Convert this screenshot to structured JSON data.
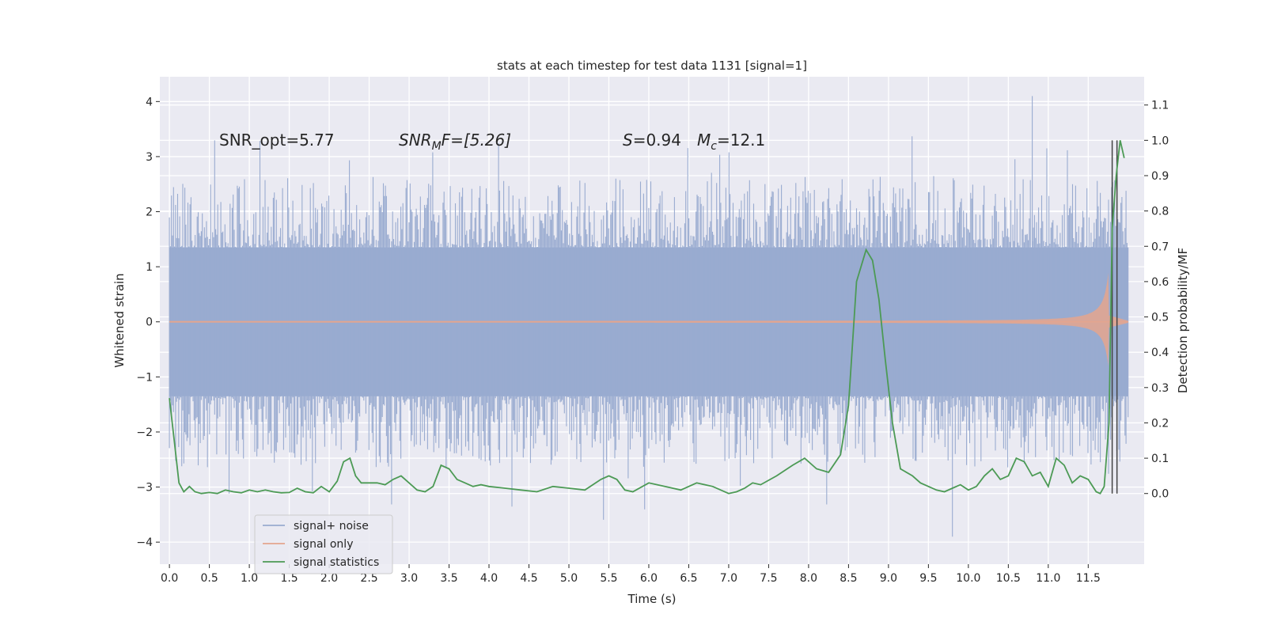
{
  "chart_data": {
    "type": "line",
    "title": "stats at each timestep for test data 1131 [signal=1]",
    "xlabel": "Time (s)",
    "ylabel": "Whitened strain",
    "y2label": "Detection probability/MF",
    "xlim": [
      -0.12,
      12.2
    ],
    "ylim": [
      -4.4,
      4.45
    ],
    "y2lim": [
      -0.2,
      1.18
    ],
    "x_ticks": [
      0.0,
      0.5,
      1.0,
      1.5,
      2.0,
      2.5,
      3.0,
      3.5,
      4.0,
      4.5,
      5.0,
      5.5,
      6.0,
      6.5,
      7.0,
      7.5,
      8.0,
      8.5,
      9.0,
      9.5,
      10.0,
      10.5,
      11.0,
      11.5
    ],
    "x_tick_labels": [
      "0.0",
      "0.5",
      "1.0",
      "1.5",
      "2.0",
      "2.5",
      "3.0",
      "3.5",
      "4.0",
      "4.5",
      "5.0",
      "5.5",
      "6.0",
      "6.5",
      "7.0",
      "7.5",
      "8.0",
      "8.5",
      "9.0",
      "9.5",
      "10.0",
      "10.5",
      "11.0",
      "11.5"
    ],
    "y_ticks": [
      4,
      3,
      2,
      1,
      0,
      -1,
      -2,
      -3,
      -4
    ],
    "y_tick_labels": [
      "4",
      "3",
      "2",
      "1",
      "0",
      "−1",
      "−2",
      "−3",
      "−4"
    ],
    "y2_ticks": [
      1.1,
      1.0,
      0.9,
      0.8,
      0.7,
      0.6,
      0.5,
      0.4,
      0.3,
      0.2,
      0.1,
      0.0
    ],
    "y2_tick_labels": [
      "1.1",
      "1.0",
      "0.9",
      "0.8",
      "0.7",
      "0.6",
      "0.5",
      "0.4",
      "0.3",
      "0.2",
      "0.1",
      "0.0"
    ],
    "grid": true,
    "legend_position": "lower-left",
    "annotations": {
      "snr_opt": "SNR_opt=5.77",
      "snr_mf_var": "SNR",
      "snr_mf_sub": "M",
      "snr_mf_rest": "F=[5.26]",
      "s_var": "S",
      "s_rest": "=0.94",
      "mc_var": "M",
      "mc_sub": "c",
      "mc_rest": "=12.1"
    },
    "vlines": [
      11.8,
      11.86
    ],
    "series": [
      {
        "name": "signal+ noise",
        "color": "#99abd0",
        "axis": "left",
        "render": "noise",
        "x_range": [
          0.0,
          12.0
        ],
        "band": [
          -1.35,
          1.35
        ],
        "extremes": [
          -3.9,
          4.1
        ]
      },
      {
        "name": "signal only",
        "color": "#e4a58e",
        "axis": "left",
        "render": "chirp",
        "x_range": [
          0.0,
          12.0
        ],
        "peak_time": 11.75,
        "peak_amplitude": 0.9
      },
      {
        "name": "signal statistics",
        "color": "#4c9a55",
        "axis": "right",
        "render": "line",
        "x": [
          0.0,
          0.06,
          0.12,
          0.18,
          0.25,
          0.32,
          0.4,
          0.5,
          0.6,
          0.7,
          0.8,
          0.9,
          1.0,
          1.1,
          1.2,
          1.3,
          1.4,
          1.5,
          1.6,
          1.7,
          1.8,
          1.9,
          2.0,
          2.1,
          2.18,
          2.26,
          2.33,
          2.4,
          2.5,
          2.6,
          2.7,
          2.8,
          2.9,
          3.0,
          3.1,
          3.2,
          3.3,
          3.4,
          3.5,
          3.6,
          3.7,
          3.8,
          3.9,
          4.0,
          4.2,
          4.4,
          4.6,
          4.8,
          5.0,
          5.2,
          5.4,
          5.5,
          5.6,
          5.7,
          5.8,
          6.0,
          6.2,
          6.4,
          6.6,
          6.8,
          7.0,
          7.1,
          7.2,
          7.3,
          7.4,
          7.6,
          7.8,
          7.95,
          8.1,
          8.25,
          8.4,
          8.5,
          8.6,
          8.72,
          8.8,
          8.88,
          8.96,
          9.05,
          9.15,
          9.3,
          9.4,
          9.5,
          9.6,
          9.7,
          9.8,
          9.9,
          10.0,
          10.1,
          10.2,
          10.3,
          10.4,
          10.5,
          10.6,
          10.7,
          10.8,
          10.9,
          11.0,
          11.1,
          11.2,
          11.3,
          11.4,
          11.5,
          11.6,
          11.65,
          11.7,
          11.76,
          11.8,
          11.85,
          11.9,
          11.95
        ],
        "y": [
          0.27,
          0.15,
          0.03,
          0.005,
          0.02,
          0.005,
          0.0,
          0.003,
          0.0,
          0.01,
          0.005,
          0.002,
          0.01,
          0.005,
          0.01,
          0.005,
          0.002,
          0.003,
          0.015,
          0.005,
          0.002,
          0.02,
          0.005,
          0.035,
          0.09,
          0.1,
          0.05,
          0.03,
          0.03,
          0.03,
          0.025,
          0.04,
          0.05,
          0.03,
          0.01,
          0.005,
          0.02,
          0.08,
          0.07,
          0.04,
          0.03,
          0.02,
          0.025,
          0.02,
          0.015,
          0.01,
          0.005,
          0.02,
          0.015,
          0.01,
          0.04,
          0.05,
          0.04,
          0.01,
          0.005,
          0.03,
          0.02,
          0.01,
          0.03,
          0.02,
          0.0,
          0.005,
          0.015,
          0.03,
          0.025,
          0.05,
          0.08,
          0.1,
          0.07,
          0.06,
          0.11,
          0.25,
          0.6,
          0.69,
          0.66,
          0.55,
          0.38,
          0.2,
          0.07,
          0.05,
          0.03,
          0.02,
          0.01,
          0.005,
          0.015,
          0.025,
          0.01,
          0.02,
          0.05,
          0.07,
          0.04,
          0.05,
          0.1,
          0.09,
          0.05,
          0.06,
          0.02,
          0.1,
          0.08,
          0.03,
          0.05,
          0.04,
          0.005,
          0.0,
          0.02,
          0.2,
          0.75,
          0.9,
          1.0,
          0.95
        ]
      }
    ]
  }
}
